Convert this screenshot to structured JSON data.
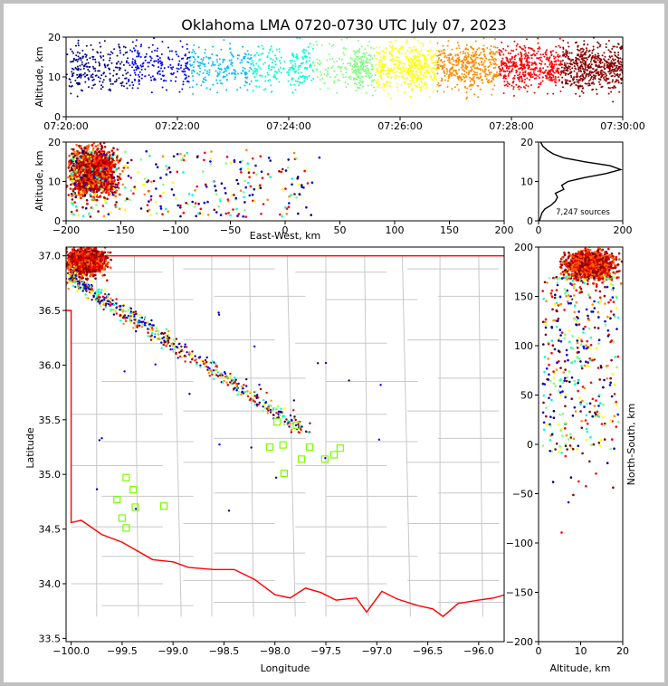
{
  "chart_data": [
    {
      "type": "scatter",
      "panel": "altitude-vs-time",
      "title": "Oklahoma LMA 0720-0730 UTC July 07, 2023",
      "xlabel": "",
      "ylabel": "Altitude, km",
      "xlim": [
        "07:20:00",
        "07:30:00"
      ],
      "ylim": [
        0,
        20
      ],
      "x_ticks": [
        "07:20:00",
        "07:22:00",
        "07:24:00",
        "07:26:00",
        "07:28:00",
        "07:30:00"
      ],
      "y_ticks": [
        "0",
        "10",
        "20"
      ],
      "color_by": "time",
      "colormap": [
        "#00008b",
        "#0000ff",
        "#00bfff",
        "#00ffd0",
        "#7fff7f",
        "#ffff00",
        "#ff8c00",
        "#ff0000",
        "#8b0000"
      ],
      "altitude_concentration_km": [
        5,
        18
      ]
    },
    {
      "type": "scatter",
      "panel": "altitude-vs-east-west",
      "xlabel": "East-West, km",
      "ylabel": "Altitude, km",
      "xlim": [
        -200,
        200
      ],
      "ylim": [
        0,
        20
      ],
      "x_ticks": [
        "−200",
        "−150",
        "−100",
        "−50",
        "0",
        "50",
        "100",
        "150",
        "200"
      ],
      "y_ticks": [
        "0",
        "10",
        "20"
      ]
    },
    {
      "type": "line",
      "panel": "altitude-histogram",
      "xlim": [
        0,
        200
      ],
      "ylim": [
        0,
        20
      ],
      "x_ticks": [
        "0",
        "200"
      ],
      "y_ticks": [
        "0",
        "10",
        "20"
      ],
      "annotation": "7,247 sources",
      "profile": [
        {
          "altitude": 0,
          "count": 2
        },
        {
          "altitude": 1,
          "count": 5
        },
        {
          "altitude": 2,
          "count": 8
        },
        {
          "altitude": 3,
          "count": 15
        },
        {
          "altitude": 4,
          "count": 30
        },
        {
          "altitude": 5,
          "count": 40
        },
        {
          "altitude": 6,
          "count": 45
        },
        {
          "altitude": 7,
          "count": 40
        },
        {
          "altitude": 8,
          "count": 60
        },
        {
          "altitude": 9,
          "count": 55
        },
        {
          "altitude": 10,
          "count": 70
        },
        {
          "altitude": 11,
          "count": 110
        },
        {
          "altitude": 12,
          "count": 160
        },
        {
          "altitude": 13,
          "count": 195
        },
        {
          "altitude": 14,
          "count": 170
        },
        {
          "altitude": 15,
          "count": 110
        },
        {
          "altitude": 16,
          "count": 60
        },
        {
          "altitude": 17,
          "count": 35
        },
        {
          "altitude": 18,
          "count": 20
        },
        {
          "altitude": 19,
          "count": 10
        },
        {
          "altitude": 20,
          "count": 5
        }
      ]
    },
    {
      "type": "scatter",
      "panel": "plan-view-map",
      "xlabel": "Longitude",
      "ylabel": "Latitude",
      "xlim": [
        -100.05,
        -95.75
      ],
      "ylim": [
        33.47,
        37.08
      ],
      "x_ticks": [
        "−100.0",
        "−99.5",
        "−99.0",
        "−98.5",
        "−98.0",
        "−97.5",
        "−97.0",
        "−96.5",
        "−96.0"
      ],
      "y_ticks": [
        "33.5",
        "34.0",
        "34.5",
        "35.0",
        "35.5",
        "36.0",
        "36.5",
        "37.0"
      ],
      "station_color": "#7cfc00",
      "border_color": "#ff0000",
      "stations": [
        {
          "lon": -97.98,
          "lat": 35.48
        },
        {
          "lon": -97.79,
          "lat": 35.45
        },
        {
          "lon": -98.05,
          "lat": 35.25
        },
        {
          "lon": -97.92,
          "lat": 35.27
        },
        {
          "lon": -97.66,
          "lat": 35.25
        },
        {
          "lon": -97.36,
          "lat": 35.24
        },
        {
          "lon": -97.42,
          "lat": 35.18
        },
        {
          "lon": -97.74,
          "lat": 35.14
        },
        {
          "lon": -97.51,
          "lat": 35.14
        },
        {
          "lon": -97.91,
          "lat": 35.01
        },
        {
          "lon": -99.46,
          "lat": 34.97
        },
        {
          "lon": -99.39,
          "lat": 34.86
        },
        {
          "lon": -99.55,
          "lat": 34.77
        },
        {
          "lon": -99.37,
          "lat": 34.7
        },
        {
          "lon": -99.09,
          "lat": 34.71
        },
        {
          "lon": -99.5,
          "lat": 34.6
        },
        {
          "lon": -99.46,
          "lat": 34.51
        }
      ]
    },
    {
      "type": "scatter",
      "panel": "north-south-vs-altitude",
      "xlabel": "Altitude, km",
      "ylabel": "North-South, km",
      "xlim": [
        0,
        20
      ],
      "ylim": [
        -200,
        200
      ],
      "x_ticks": [
        "0",
        "10",
        "20"
      ],
      "y_ticks": [
        "−200",
        "−150",
        "−100",
        "−50",
        "0",
        "50",
        "100",
        "150",
        "200"
      ]
    }
  ]
}
